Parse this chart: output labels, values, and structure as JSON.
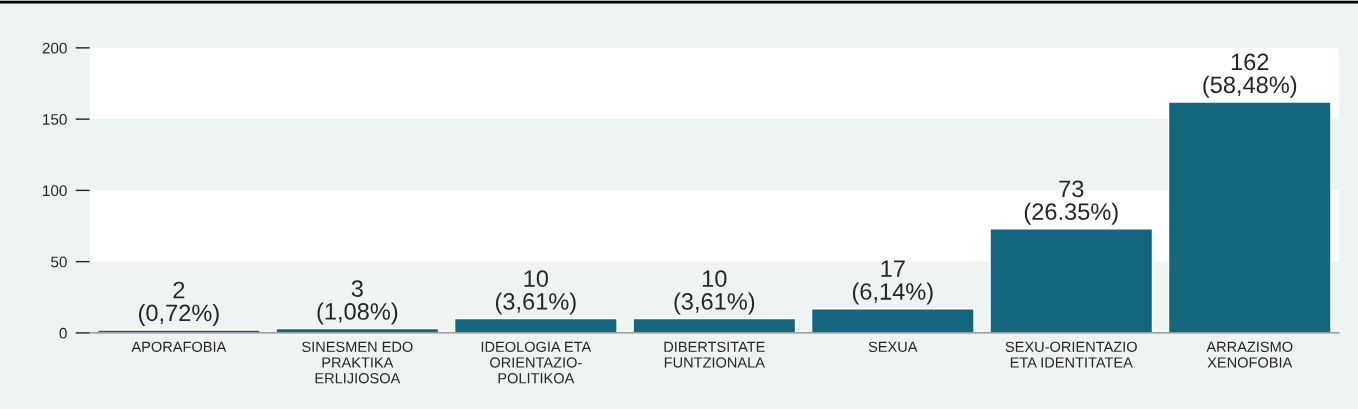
{
  "chart_data": {
    "type": "bar",
    "categories": [
      "APORAFOBIA",
      "SINESMEN EDO\nPRAKTIKA\nERLIJIOSOA",
      "IDEOLOGIA ETA\nORIENTAZIO-\nPOLITIKOA",
      "DIBERTSITATE\nFUNTZIONALA",
      "SEXUA",
      "SEXU-ORIENTAZIO\nETA IDENTITATEA",
      "ARRAZISMO\nXENOFOBIA"
    ],
    "values": [
      2,
      3,
      10,
      10,
      17,
      73,
      162
    ],
    "value_labels": [
      "2\n(0,72%)",
      "3\n(1,08%)",
      "10\n(3,61%)",
      "10\n(3,61%)",
      "17\n(6,14%)",
      "73\n(26.35%)",
      "162\n(58,48%)"
    ],
    "color": "#12667d",
    "ylim": [
      0,
      200
    ],
    "yticks": [
      0,
      50,
      100,
      150,
      200
    ],
    "bands": [
      {
        "axis": "y",
        "from": 50,
        "to": 100,
        "color": "#ffffff"
      },
      {
        "axis": "y",
        "from": 150,
        "to": 200,
        "color": "#ffffff"
      }
    ],
    "grid": false,
    "legend": false
  }
}
